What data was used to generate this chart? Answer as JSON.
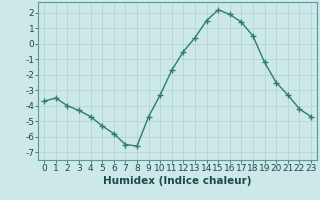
{
  "x": [
    0,
    1,
    2,
    3,
    4,
    5,
    6,
    7,
    8,
    9,
    10,
    11,
    12,
    13,
    14,
    15,
    16,
    17,
    18,
    19,
    20,
    21,
    22,
    23
  ],
  "y": [
    -3.7,
    -3.5,
    -4.0,
    -4.3,
    -4.7,
    -5.3,
    -5.8,
    -6.5,
    -6.6,
    -4.7,
    -3.3,
    -1.7,
    -0.5,
    0.4,
    1.5,
    2.2,
    1.9,
    1.4,
    0.5,
    -1.2,
    -2.5,
    -3.3,
    -4.2,
    -4.7
  ],
  "line_color": "#2e7d6e",
  "marker": "+",
  "marker_size": 4,
  "bg_color": "#cce8e8",
  "grid_color": "#b8d8d8",
  "xlabel": "Humidex (Indice chaleur)",
  "xlim": [
    -0.5,
    23.5
  ],
  "ylim": [
    -7.5,
    2.7
  ],
  "yticks": [
    -7,
    -6,
    -5,
    -4,
    -3,
    -2,
    -1,
    0,
    1,
    2
  ],
  "xticks": [
    0,
    1,
    2,
    3,
    4,
    5,
    6,
    7,
    8,
    9,
    10,
    11,
    12,
    13,
    14,
    15,
    16,
    17,
    18,
    19,
    20,
    21,
    22,
    23
  ],
  "xtick_labels": [
    "0",
    "1",
    "2",
    "3",
    "4",
    "5",
    "6",
    "7",
    "8",
    "9",
    "10",
    "11",
    "12",
    "13",
    "14",
    "15",
    "16",
    "17",
    "18",
    "19",
    "20",
    "21",
    "22",
    "23"
  ],
  "tick_fontsize": 6.5,
  "xlabel_fontsize": 7.5,
  "linewidth": 1.0,
  "marker_edge_width": 1.0
}
